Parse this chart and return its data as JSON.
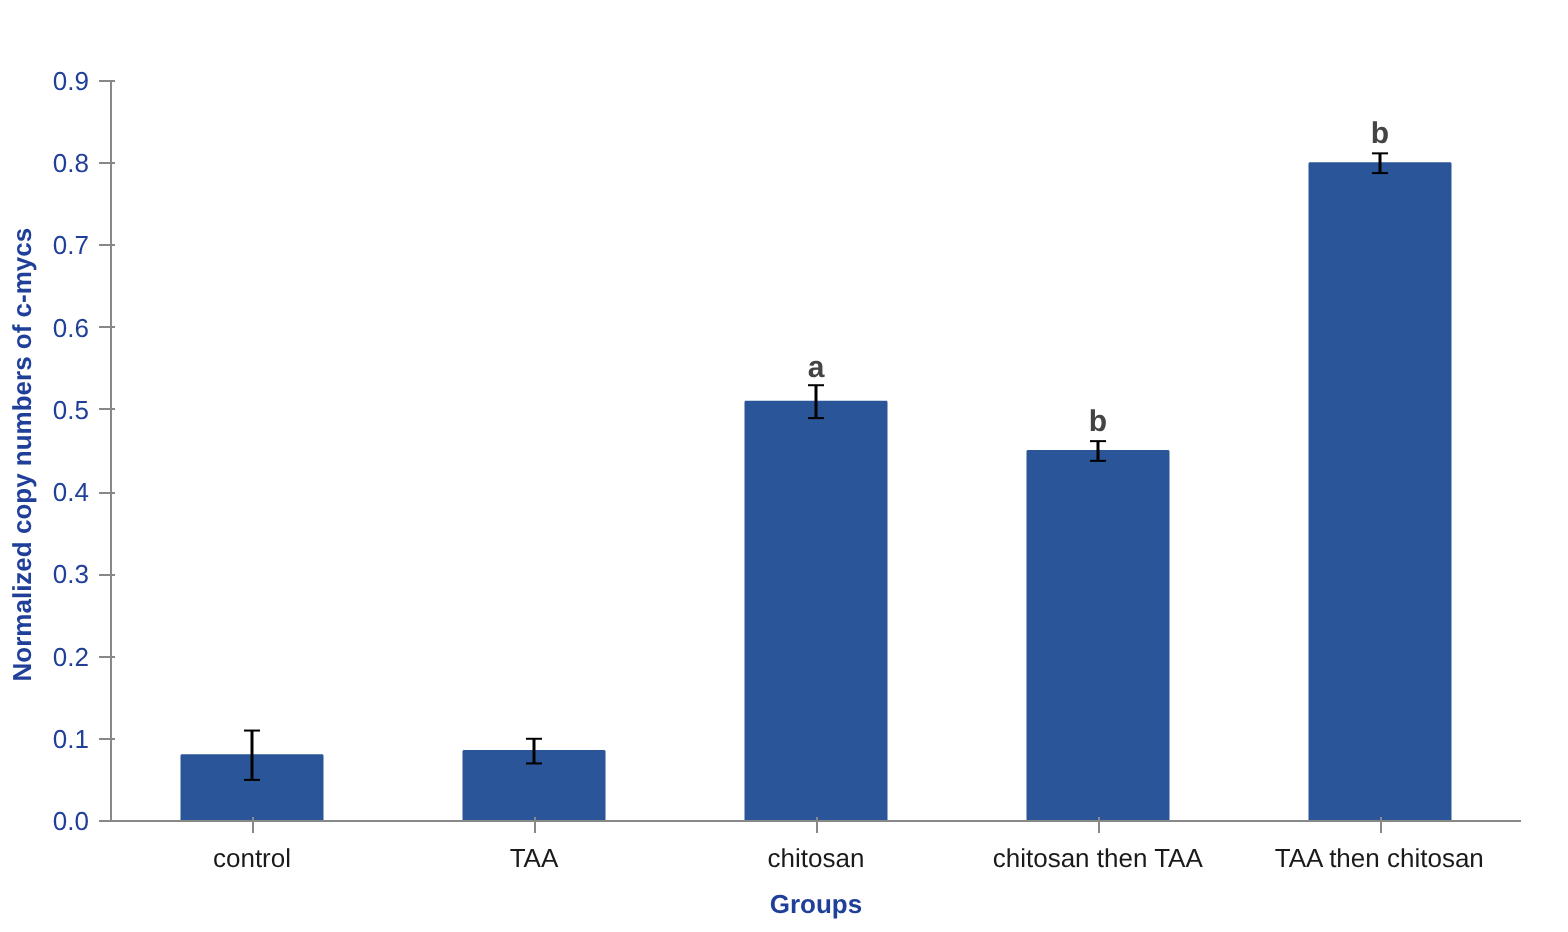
{
  "chart_data": {
    "type": "bar",
    "xlabel": "Groups",
    "ylabel": "Normalized copy numbers of  c-mycs",
    "categories": [
      "control",
      "TAA",
      "chitosan",
      "chitosan then TAA",
      "TAA then chitosan"
    ],
    "values": [
      0.08,
      0.085,
      0.51,
      0.45,
      0.8
    ],
    "errors": [
      0.03,
      0.015,
      0.02,
      0.012,
      0.012
    ],
    "color": "#2a5599",
    "ylim": [
      0,
      0.9
    ],
    "yticks": [
      "0.0",
      0.1,
      0.2,
      0.3,
      0.4,
      0.5,
      0.6,
      0.7,
      0.8,
      0.9
    ],
    "grid": false,
    "annotations": [
      {
        "text": "a",
        "x": "chitosan",
        "y": 0.53
      },
      {
        "text": "b",
        "x": "chitosan then TAA",
        "y": 0.465
      },
      {
        "text": "b",
        "x": "TAA then chitosan",
        "y": 0.815
      }
    ]
  }
}
